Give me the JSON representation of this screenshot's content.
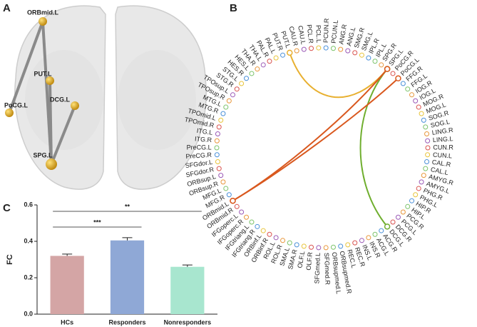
{
  "panels": [
    "A",
    "B",
    "C"
  ],
  "brain": {
    "nodes": [
      "ORBmid.L",
      "PUT.L",
      "PoCG.L",
      "DCG.L",
      "SPG.L"
    ]
  },
  "connectogram": {
    "regions": [
      "PCUN.R",
      "PCUN.L",
      "ANG.R",
      "ANG.L",
      "SMG.R",
      "SMG.L",
      "IPL.R",
      "IPL.L",
      "SPG.R",
      "SPG.L",
      "PoCG.R",
      "PoCG.L",
      "FFG.R",
      "FFG.L",
      "IOG.R",
      "IOG.L",
      "MOG.R",
      "MOG.L",
      "SOG.R",
      "SOG.L",
      "LING.R",
      "LING.L",
      "CUN.R",
      "CUN.L",
      "CAL.R",
      "CAL.L",
      "AMYG.R",
      "AMYG.L",
      "PHG.R",
      "PHG.L",
      "HIP.R",
      "HIP.L",
      "PCG.R",
      "PCG.L",
      "DCG.R",
      "DCG.L",
      "ACG.R",
      "ACG.L",
      "INS.R",
      "INS.L",
      "REC.R",
      "REC.L",
      "ORBsupmed.R",
      "ORBsupmed.L",
      "SFGmed.R",
      "SFGmed.L",
      "OLF.R",
      "OLF.L",
      "SMA.R",
      "SMA.L",
      "ROL.R",
      "ROL.L",
      "ORBinf.R",
      "ORBinf.L",
      "IFGtriang.R",
      "IFGtriang.L",
      "IFGoperc.R",
      "IFGoperc.L",
      "ORBmid.R",
      "ORBmid.L",
      "MFG.R",
      "MFG.L",
      "ORBsup.R",
      "ORBsup.L",
      "SFGdor.R",
      "SFGdor.L",
      "PreCG.R",
      "PreCG.L",
      "ITG.R",
      "ITG.L",
      "TPOmid.R",
      "TPOmid.L",
      "MTG.R",
      "MTG.L",
      "TPOsup.R",
      "TPOsup.L",
      "STG.R",
      "STG.L",
      "HES.R",
      "HES.L",
      "THA.R",
      "THA.L",
      "PAL.R",
      "PAL.L",
      "PUT.R",
      "PUT.L",
      "CAU.R",
      "CAU.L",
      "PCL.R",
      "PCL.L"
    ],
    "node_colors": [
      "#4a90d9",
      "#7cc36b",
      "#e8963a",
      "#9b59b6",
      "#d9534f",
      "#e8c43a"
    ],
    "connections": [
      {
        "from": "PUT.L",
        "to": "SPG.L",
        "color": "#e8b030"
      },
      {
        "from": "SPG.L",
        "to": "DCG.L",
        "color": "#6fae2e"
      },
      {
        "from": "ORBmid.L",
        "to": "SPG.L",
        "color": "#d9581e"
      },
      {
        "from": "ORBmid.L",
        "to": "PoCG.L",
        "color": "#d9581e"
      }
    ]
  },
  "chart_data": {
    "type": "bar",
    "ylabel": "FC",
    "categories": [
      "HCs",
      "Responders",
      "Nonresponders"
    ],
    "values": [
      0.32,
      0.405,
      0.26
    ],
    "errors": [
      0.01,
      0.015,
      0.01
    ],
    "colors": [
      "#d4a5a5",
      "#8fa8d6",
      "#a8e6cf"
    ],
    "ylim": [
      0,
      0.6
    ],
    "yticks": [
      {
        "value": 0,
        "label": "0.0"
      },
      0.2,
      0.4,
      0.6
    ],
    "annotations": [
      {
        "text": "***",
        "between": [
          "HCs",
          "Responders"
        ]
      },
      {
        "text": "**",
        "between": [
          "HCs",
          "Nonresponders"
        ]
      }
    ]
  }
}
